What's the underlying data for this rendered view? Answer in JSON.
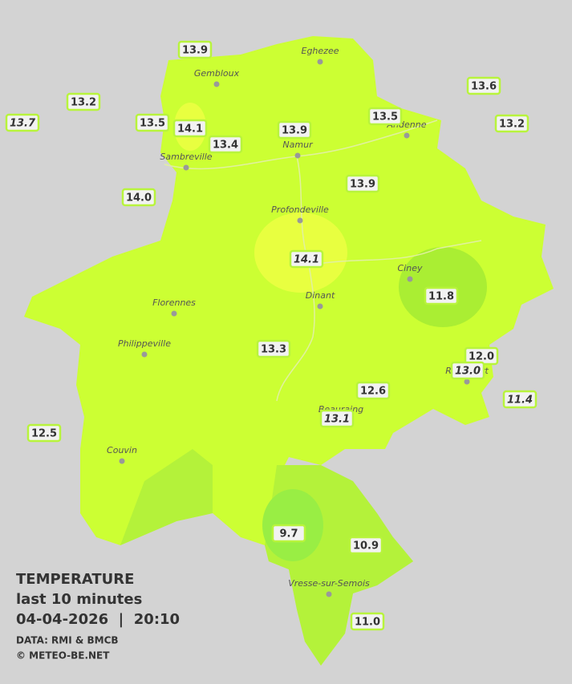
{
  "towns": [
    "Eghezee",
    "Gembloux",
    "Andenne",
    "Namur",
    "Sambreville",
    "Profondeville",
    "Ciney",
    "Florennes",
    "Dinant",
    "Philippeville",
    "Rochefort",
    "Beauraing",
    "Couvin",
    "Vresse-sur-Semois"
  ],
  "stations": [
    {
      "value": 13.9,
      "label": "13.9"
    },
    {
      "value": 13.2,
      "label": "13.2"
    },
    {
      "value": 13.7,
      "label": "13.7",
      "italic": true
    },
    {
      "value": 13.5,
      "label": "13.5"
    },
    {
      "value": 14.1,
      "label": "14.1"
    },
    {
      "value": 13.4,
      "label": "13.4"
    },
    {
      "value": 13.9,
      "label": "13.9"
    },
    {
      "value": 13.5,
      "label": "13.5"
    },
    {
      "value": 13.6,
      "label": "13.6"
    },
    {
      "value": 13.2,
      "label": "13.2"
    },
    {
      "value": 14.0,
      "label": "14.0"
    },
    {
      "value": 13.9,
      "label": "13.9"
    },
    {
      "value": 14.1,
      "label": "14.1",
      "italic": true
    },
    {
      "value": 11.8,
      "label": "11.8"
    },
    {
      "value": 13.3,
      "label": "13.3"
    },
    {
      "value": 12.0,
      "label": "12.0"
    },
    {
      "value": 13.0,
      "label": "13.0",
      "italic": true
    },
    {
      "value": 12.6,
      "label": "12.6"
    },
    {
      "value": 11.4,
      "label": "11.4",
      "italic": true
    },
    {
      "value": 13.1,
      "label": "13.1",
      "italic": true
    },
    {
      "value": 12.5,
      "label": "12.5"
    },
    {
      "value": 9.7,
      "label": "9.7"
    },
    {
      "value": 10.9,
      "label": "10.9"
    },
    {
      "value": 11.0,
      "label": "11.0"
    }
  ],
  "legend": {
    "title": "TEMPERATURE",
    "period": "last 10 minutes",
    "datetime": "04-04-2026  |  20:10",
    "source": "DATA: RMI & BMCB",
    "copyright": "© METEO-BE.NET"
  }
}
